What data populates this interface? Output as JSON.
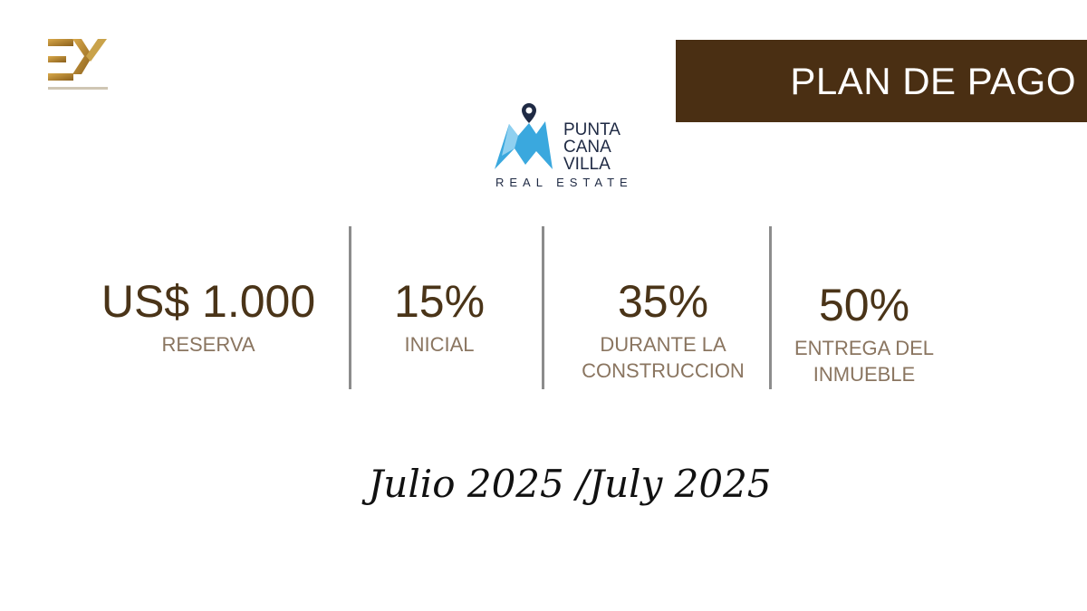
{
  "logos": {
    "ey": {
      "text": "EY",
      "color": "#b8862f"
    },
    "punta_cana_villa": {
      "name_lines": [
        "PUNTA",
        "CANA",
        "VILLA"
      ],
      "subtitle": "REAL ESTATE",
      "color": "#3aa8de"
    }
  },
  "banner": {
    "title": "PLAN DE PAGO",
    "color": "#4a2f13"
  },
  "plan": [
    {
      "value": "US$ 1.000",
      "label_lines": [
        "RESERVA"
      ]
    },
    {
      "value": "15%",
      "label_lines": [
        "INICIAL"
      ]
    },
    {
      "value": "35%",
      "label_lines": [
        "DURANTE LA",
        "CONSTRUCCION"
      ]
    },
    {
      "value": "50%",
      "label_lines": [
        "ENTREGA DEL",
        "INMUEBLE"
      ]
    }
  ],
  "date": "Julio 2025 /July 2025"
}
